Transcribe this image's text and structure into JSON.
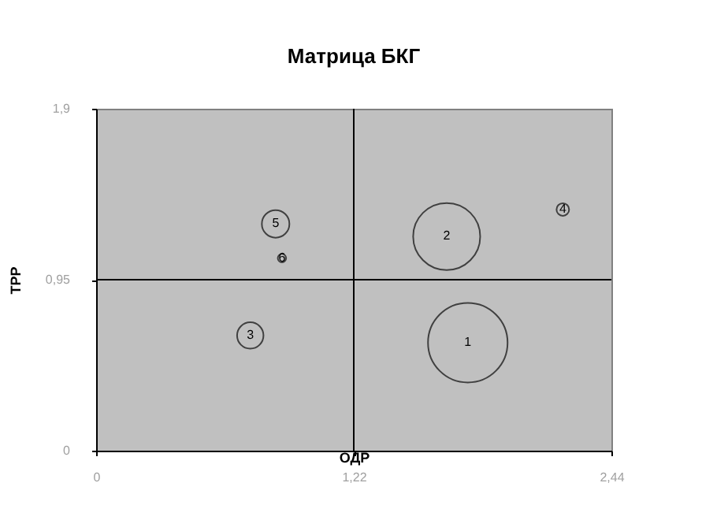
{
  "chart_data": {
    "type": "bubble",
    "title": "Матрица БКГ",
    "xlabel": "ОДР",
    "ylabel": "ТРР",
    "x": [
      1.76,
      1.66,
      0.73,
      2.21,
      0.85,
      0.88
    ],
    "series": [
      {
        "color": "#404040",
        "values": [
          0.6,
          1.19,
          0.64,
          1.34,
          1.26,
          1.07
        ],
        "sizes": [
          1,
          0.71,
          0.11,
          0.025,
          0.12,
          0.011
        ]
      }
    ],
    "xlim": [
      0,
      2.44
    ],
    "ylim": [
      0,
      1.9
    ],
    "xticks": [
      0,
      {
        "value": 1.22,
        "label": "1,22"
      },
      {
        "value": 2.44,
        "label": "2,44"
      }
    ],
    "yticks": [
      0,
      {
        "value": 0.95,
        "label": "0,95"
      },
      {
        "value": 1.9,
        "label": "1,9"
      }
    ],
    "ref_lines": [
      {
        "axis": "x",
        "value": 1.22,
        "color": "#000000"
      },
      {
        "axis": "y",
        "value": 0.95,
        "color": "#000000"
      }
    ],
    "annotations": [
      {
        "text": "1",
        "x": 1.76,
        "y": 0.6
      },
      {
        "text": "2",
        "x": 1.66,
        "y": 1.19
      },
      {
        "text": "3",
        "x": 0.73,
        "y": 0.64
      },
      {
        "text": "4",
        "x": 2.21,
        "y": 1.34
      },
      {
        "text": "5",
        "x": 0.85,
        "y": 1.26
      },
      {
        "text": "6",
        "x": 0.88,
        "y": 1.07
      }
    ],
    "grid": false,
    "legend": false
  }
}
